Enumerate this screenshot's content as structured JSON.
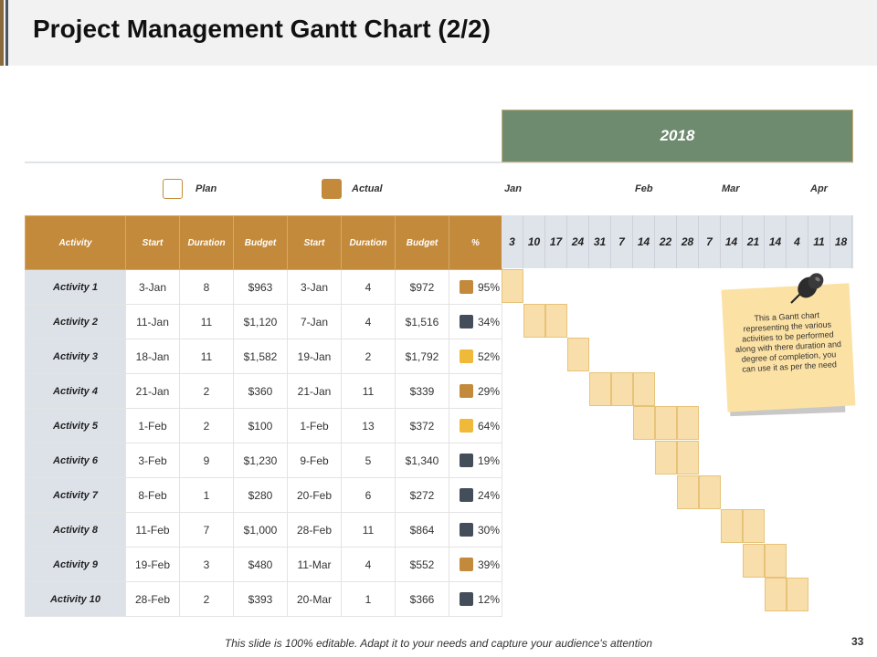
{
  "title": "Project Management Gantt Chart (2/2)",
  "year": "2018",
  "legend": {
    "plan": "Plan",
    "actual": "Actual"
  },
  "months": [
    "Jan",
    "Feb",
    "Mar",
    "Apr"
  ],
  "headers": [
    "Activity",
    "Start",
    "Duration",
    "Budget",
    "Start",
    "Duration",
    "Budget",
    "%"
  ],
  "weeks": [
    "3",
    "10",
    "17",
    "24",
    "31",
    "7",
    "14",
    "22",
    "28",
    "7",
    "14",
    "21",
    "14",
    "4",
    "11",
    "18"
  ],
  "activities": [
    {
      "name": "Activity 1",
      "plan_start": "3-Jan",
      "plan_duration": "8",
      "plan_budget": "$963",
      "actual_start": "3-Jan",
      "actual_duration": "4",
      "actual_budget": "$972",
      "percent": "95%",
      "marker_color": "#c48a3c",
      "bar_start": 0,
      "bar_length": 1
    },
    {
      "name": "Activity 2",
      "plan_start": "11-Jan",
      "plan_duration": "11",
      "plan_budget": "$1,120",
      "actual_start": "7-Jan",
      "actual_duration": "4",
      "actual_budget": "$1,516",
      "percent": "34%",
      "marker_color": "#444d5a",
      "bar_start": 1,
      "bar_length": 2
    },
    {
      "name": "Activity 3",
      "plan_start": "18-Jan",
      "plan_duration": "11",
      "plan_budget": "$1,582",
      "actual_start": "19-Jan",
      "actual_duration": "2",
      "actual_budget": "$1,792",
      "percent": "52%",
      "marker_color": "#f0b93a",
      "bar_start": 3,
      "bar_length": 1
    },
    {
      "name": "Activity 4",
      "plan_start": "21-Jan",
      "plan_duration": "2",
      "plan_budget": "$360",
      "actual_start": "21-Jan",
      "actual_duration": "11",
      "actual_budget": "$339",
      "percent": "29%",
      "marker_color": "#c48a3c",
      "bar_start": 4,
      "bar_length": 3
    },
    {
      "name": "Activity 5",
      "plan_start": "1-Feb",
      "plan_duration": "2",
      "plan_budget": "$100",
      "actual_start": "1-Feb",
      "actual_duration": "13",
      "actual_budget": "$372",
      "percent": "64%",
      "marker_color": "#f0b93a",
      "bar_start": 6,
      "bar_length": 3
    },
    {
      "name": "Activity 6",
      "plan_start": "3-Feb",
      "plan_duration": "9",
      "plan_budget": "$1,230",
      "actual_start": "9-Feb",
      "actual_duration": "5",
      "actual_budget": "$1,340",
      "percent": "19%",
      "marker_color": "#444d5a",
      "bar_start": 7,
      "bar_length": 2
    },
    {
      "name": "Activity 7",
      "plan_start": "8-Feb",
      "plan_duration": "1",
      "plan_budget": "$280",
      "actual_start": "20-Feb",
      "actual_duration": "6",
      "actual_budget": "$272",
      "percent": "24%",
      "marker_color": "#444d5a",
      "bar_start": 8,
      "bar_length": 2
    },
    {
      "name": "Activity 8",
      "plan_start": "11-Feb",
      "plan_duration": "7",
      "plan_budget": "$1,000",
      "actual_start": "28-Feb",
      "actual_duration": "11",
      "actual_budget": "$864",
      "percent": "30%",
      "marker_color": "#444d5a",
      "bar_start": 10,
      "bar_length": 2
    },
    {
      "name": "Activity 9",
      "plan_start": "19-Feb",
      "plan_duration": "3",
      "plan_budget": "$480",
      "actual_start": "11-Mar",
      "actual_duration": "4",
      "actual_budget": "$552",
      "percent": "39%",
      "marker_color": "#c48a3c",
      "bar_start": 11,
      "bar_length": 2
    },
    {
      "name": "Activity 10",
      "plan_start": "28-Feb",
      "plan_duration": "2",
      "plan_budget": "$393",
      "actual_start": "20-Mar",
      "actual_duration": "1",
      "actual_budget": "$366",
      "percent": "12%",
      "marker_color": "#444d5a",
      "bar_start": 12,
      "bar_length": 2
    }
  ],
  "note": "This a Gantt chart representing the various activities to be performed along with there duration and degree of completion, you can use it as per the need",
  "footer": "This slide is 100% editable. Adapt it to your needs and capture your audience's attention",
  "page_number": "33",
  "colors": {
    "header": "#c48a3c",
    "banner": "#6e8a6f",
    "bar": "#f8deaa",
    "dark": "#444d5a",
    "yellow": "#f0b93a"
  }
}
